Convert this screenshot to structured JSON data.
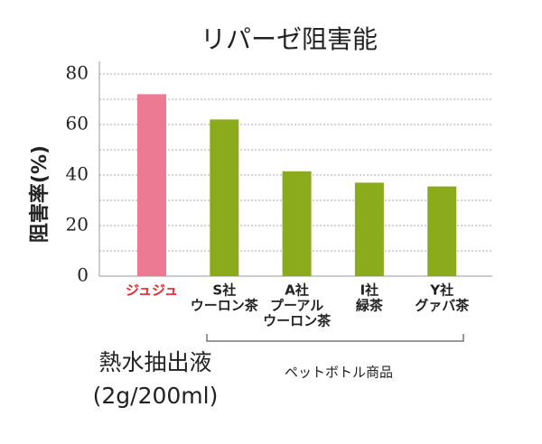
{
  "chart_data": {
    "type": "bar",
    "title": "リパーゼ阻害能",
    "y_label": "阻害率(%)",
    "categories": [
      [
        "ジュジュ"
      ],
      [
        "S社",
        "ウーロン茶"
      ],
      [
        "A社",
        "プーアル",
        "ウーロン茶"
      ],
      [
        "I社",
        "緑茶"
      ],
      [
        "Y社",
        "グァバ茶"
      ]
    ],
    "values": [
      72,
      62,
      41.5,
      37,
      35.5
    ],
    "colors": [
      "#eb7a92",
      "#8cab1c",
      "#8cab1c",
      "#8cab1c",
      "#8cab1c"
    ],
    "label_colors": [
      "#e8262e",
      "#222222",
      "#222222",
      "#222222",
      "#222222"
    ],
    "ylim": [
      0,
      85
    ],
    "yticks": [
      0,
      20,
      40,
      60,
      80
    ],
    "minor_yticks": [
      10,
      30,
      50,
      70
    ],
    "grid": true,
    "annotations": {
      "left": [
        "熱水抽出液",
        "(2g/200ml)"
      ],
      "bracket": "ペットボトル商品"
    }
  }
}
